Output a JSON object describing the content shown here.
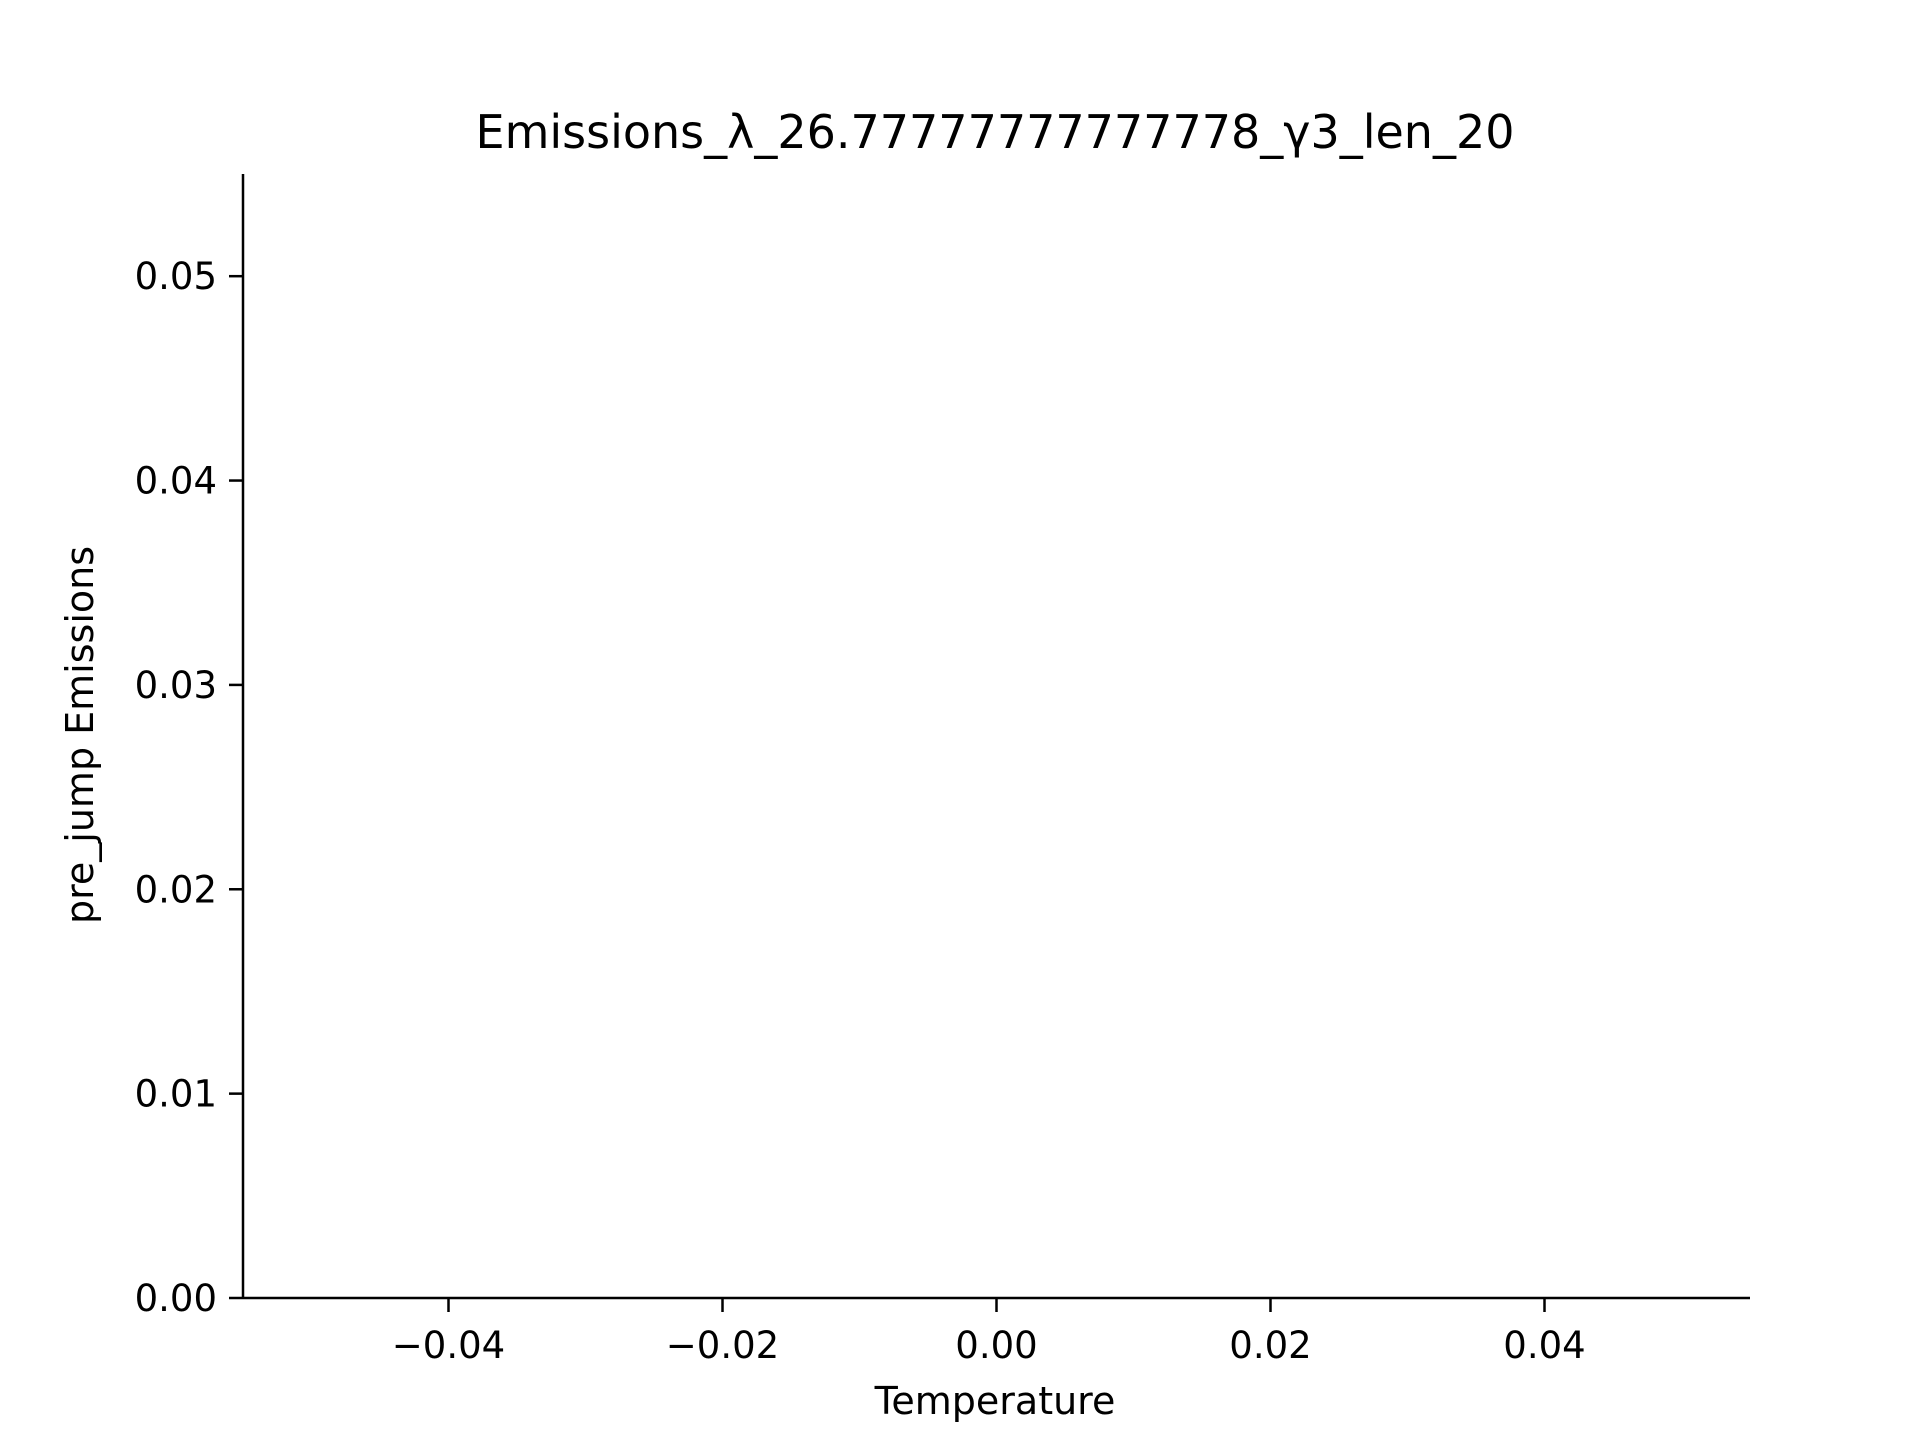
{
  "chart_data": {
    "type": "scatter",
    "title": "Emissions_λ_26.77777777777778_γ3_len_20",
    "xlabel": "Temperature",
    "ylabel": "pre_jump Emissions",
    "xlim": [
      -0.055,
      0.055
    ],
    "ylim": [
      0,
      0.055
    ],
    "x_ticks": [
      -0.04,
      -0.02,
      0.0,
      0.02,
      0.04
    ],
    "x_tick_labels": [
      "−0.04",
      "−0.02",
      "0.00",
      "0.02",
      "0.04"
    ],
    "y_ticks": [
      0.0,
      0.01,
      0.02,
      0.03,
      0.04,
      0.05
    ],
    "y_tick_labels": [
      "0.00",
      "0.01",
      "0.02",
      "0.03",
      "0.04",
      "0.05"
    ],
    "grid": false,
    "spines": [
      "left",
      "bottom"
    ],
    "series": [],
    "colors": {
      "axis": "#000000",
      "background": "#ffffff"
    }
  }
}
